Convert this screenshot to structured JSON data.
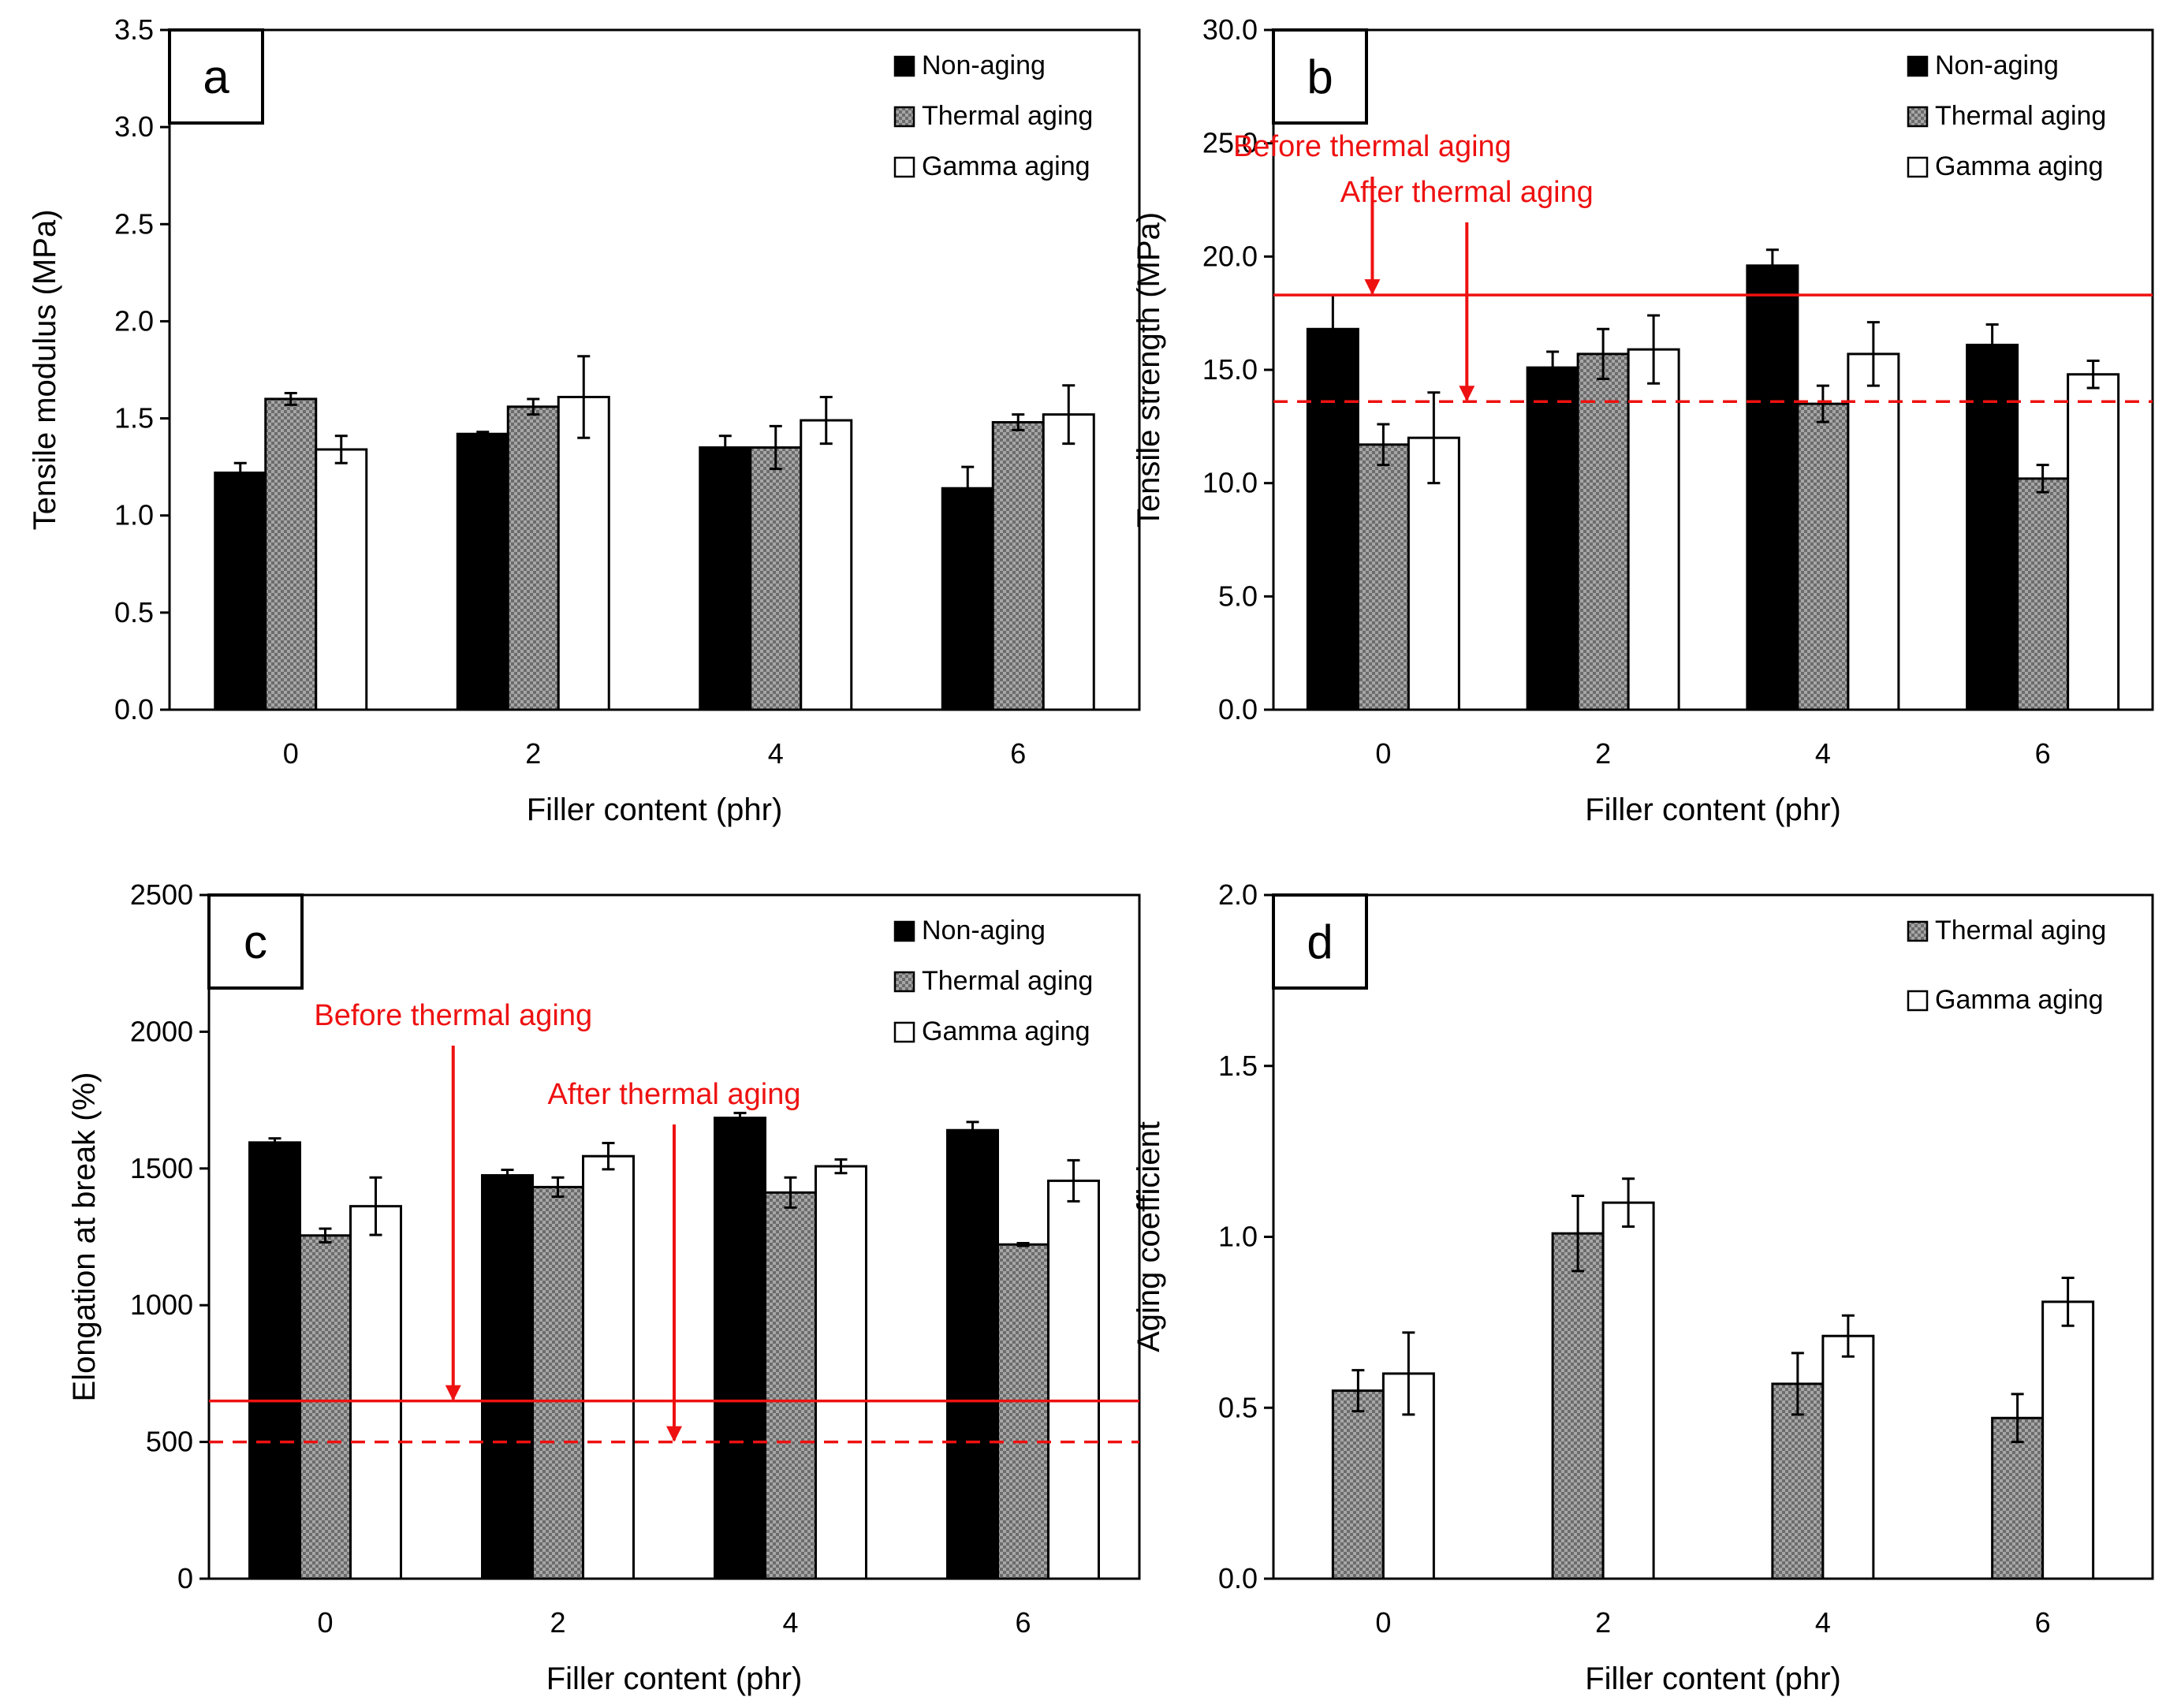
{
  "colors": {
    "non_aging": "#000000",
    "thermal_aging": "#8c8c8c",
    "gamma_aging": "#ffffff",
    "annotation": "#ee1111"
  },
  "chart_data": [
    {
      "type": "bar",
      "panel": "a",
      "categories": [
        "0",
        "2",
        "4",
        "6"
      ],
      "xlabel": "Filler content (phr)",
      "ylabel": "Tensile modulus (MPa)",
      "ylim": [
        0,
        3.5
      ],
      "yticks": [
        "0.0",
        "0.5",
        "1.0",
        "1.5",
        "2.0",
        "2.5",
        "3.0",
        "3.5"
      ],
      "legend": [
        "Non-aging",
        "Thermal aging",
        "Gamma aging"
      ],
      "series": [
        {
          "name": "Non-aging",
          "values": [
            1.22,
            1.42,
            1.35,
            1.14
          ],
          "errors": [
            0.05,
            0.01,
            0.06,
            0.11
          ]
        },
        {
          "name": "Thermal aging",
          "values": [
            1.6,
            1.56,
            1.35,
            1.48
          ],
          "errors": [
            0.03,
            0.04,
            0.11,
            0.04
          ]
        },
        {
          "name": "Gamma aging",
          "values": [
            1.34,
            1.61,
            1.49,
            1.52
          ],
          "errors": [
            0.07,
            0.21,
            0.12,
            0.15
          ]
        }
      ],
      "reference_lines": []
    },
    {
      "type": "bar",
      "panel": "b",
      "categories": [
        "0",
        "2",
        "4",
        "6"
      ],
      "xlabel": "Filler content (phr)",
      "ylabel": "Tensile strength (MPa)",
      "ylim": [
        0,
        30
      ],
      "yticks": [
        "0.0",
        "5.0",
        "10.0",
        "15.0",
        "20.0",
        "25.0",
        "30.0"
      ],
      "legend": [
        "Non-aging",
        "Thermal aging",
        "Gamma aging"
      ],
      "series": [
        {
          "name": "Non-aging",
          "values": [
            16.8,
            15.1,
            19.6,
            16.1
          ],
          "errors": [
            1.5,
            0.7,
            0.7,
            0.9
          ]
        },
        {
          "name": "Thermal aging",
          "values": [
            11.7,
            15.7,
            13.5,
            10.2
          ],
          "errors": [
            0.9,
            1.1,
            0.8,
            0.6
          ]
        },
        {
          "name": "Gamma aging",
          "values": [
            12.0,
            15.9,
            15.7,
            14.8
          ],
          "errors": [
            2.0,
            1.5,
            1.4,
            0.6
          ]
        }
      ],
      "reference_lines": [
        {
          "label": "Before thermal aging",
          "value": 18.3,
          "style": "solid",
          "arrow_category": 0,
          "arrow_offset": -0.05
        },
        {
          "label": "After thermal aging",
          "value": 13.6,
          "style": "dashed",
          "arrow_category": 0,
          "arrow_offset": 0.38
        }
      ]
    },
    {
      "type": "bar",
      "panel": "c",
      "categories": [
        "0",
        "2",
        "4",
        "6"
      ],
      "xlabel": "Filler content (phr)",
      "ylabel": "Elongation at break (%)",
      "ylim": [
        0,
        2500
      ],
      "yticks": [
        "0",
        "500",
        "1000",
        "1500",
        "2000",
        "2500"
      ],
      "legend": [
        "Non-aging",
        "Thermal aging",
        "Gamma aging"
      ],
      "series": [
        {
          "name": "Non-aging",
          "values": [
            1595,
            1475,
            1685,
            1640
          ],
          "errors": [
            15,
            20,
            18,
            30
          ]
        },
        {
          "name": "Thermal aging",
          "values": [
            1255,
            1432,
            1412,
            1222
          ],
          "errors": [
            25,
            35,
            55,
            5
          ]
        },
        {
          "name": "Gamma aging",
          "values": [
            1362,
            1545,
            1508,
            1455
          ],
          "errors": [
            105,
            48,
            25,
            75
          ]
        }
      ],
      "reference_lines": [
        {
          "label": "Before thermal aging",
          "value": 650,
          "style": "solid",
          "arrow_category": 0,
          "arrow_offset": 0.55
        },
        {
          "label": "After thermal aging",
          "value": 500,
          "style": "dashed",
          "arrow_category": 1,
          "arrow_offset": 0.5
        }
      ]
    },
    {
      "type": "bar",
      "panel": "d",
      "categories": [
        "0",
        "2",
        "4",
        "6"
      ],
      "xlabel": "Filler content (phr)",
      "ylabel": "Aging coefficient",
      "ylim": [
        0,
        2.0
      ],
      "yticks": [
        "0.0",
        "0.5",
        "1.0",
        "1.5",
        "2.0"
      ],
      "legend": [
        "Thermal aging",
        "Gamma aging"
      ],
      "series": [
        {
          "name": "Thermal aging",
          "values": [
            0.55,
            1.01,
            0.57,
            0.47
          ],
          "errors": [
            0.06,
            0.11,
            0.09,
            0.07
          ]
        },
        {
          "name": "Gamma aging",
          "values": [
            0.6,
            1.1,
            0.71,
            0.81
          ],
          "errors": [
            0.12,
            0.07,
            0.06,
            0.07
          ]
        }
      ],
      "reference_lines": []
    }
  ]
}
